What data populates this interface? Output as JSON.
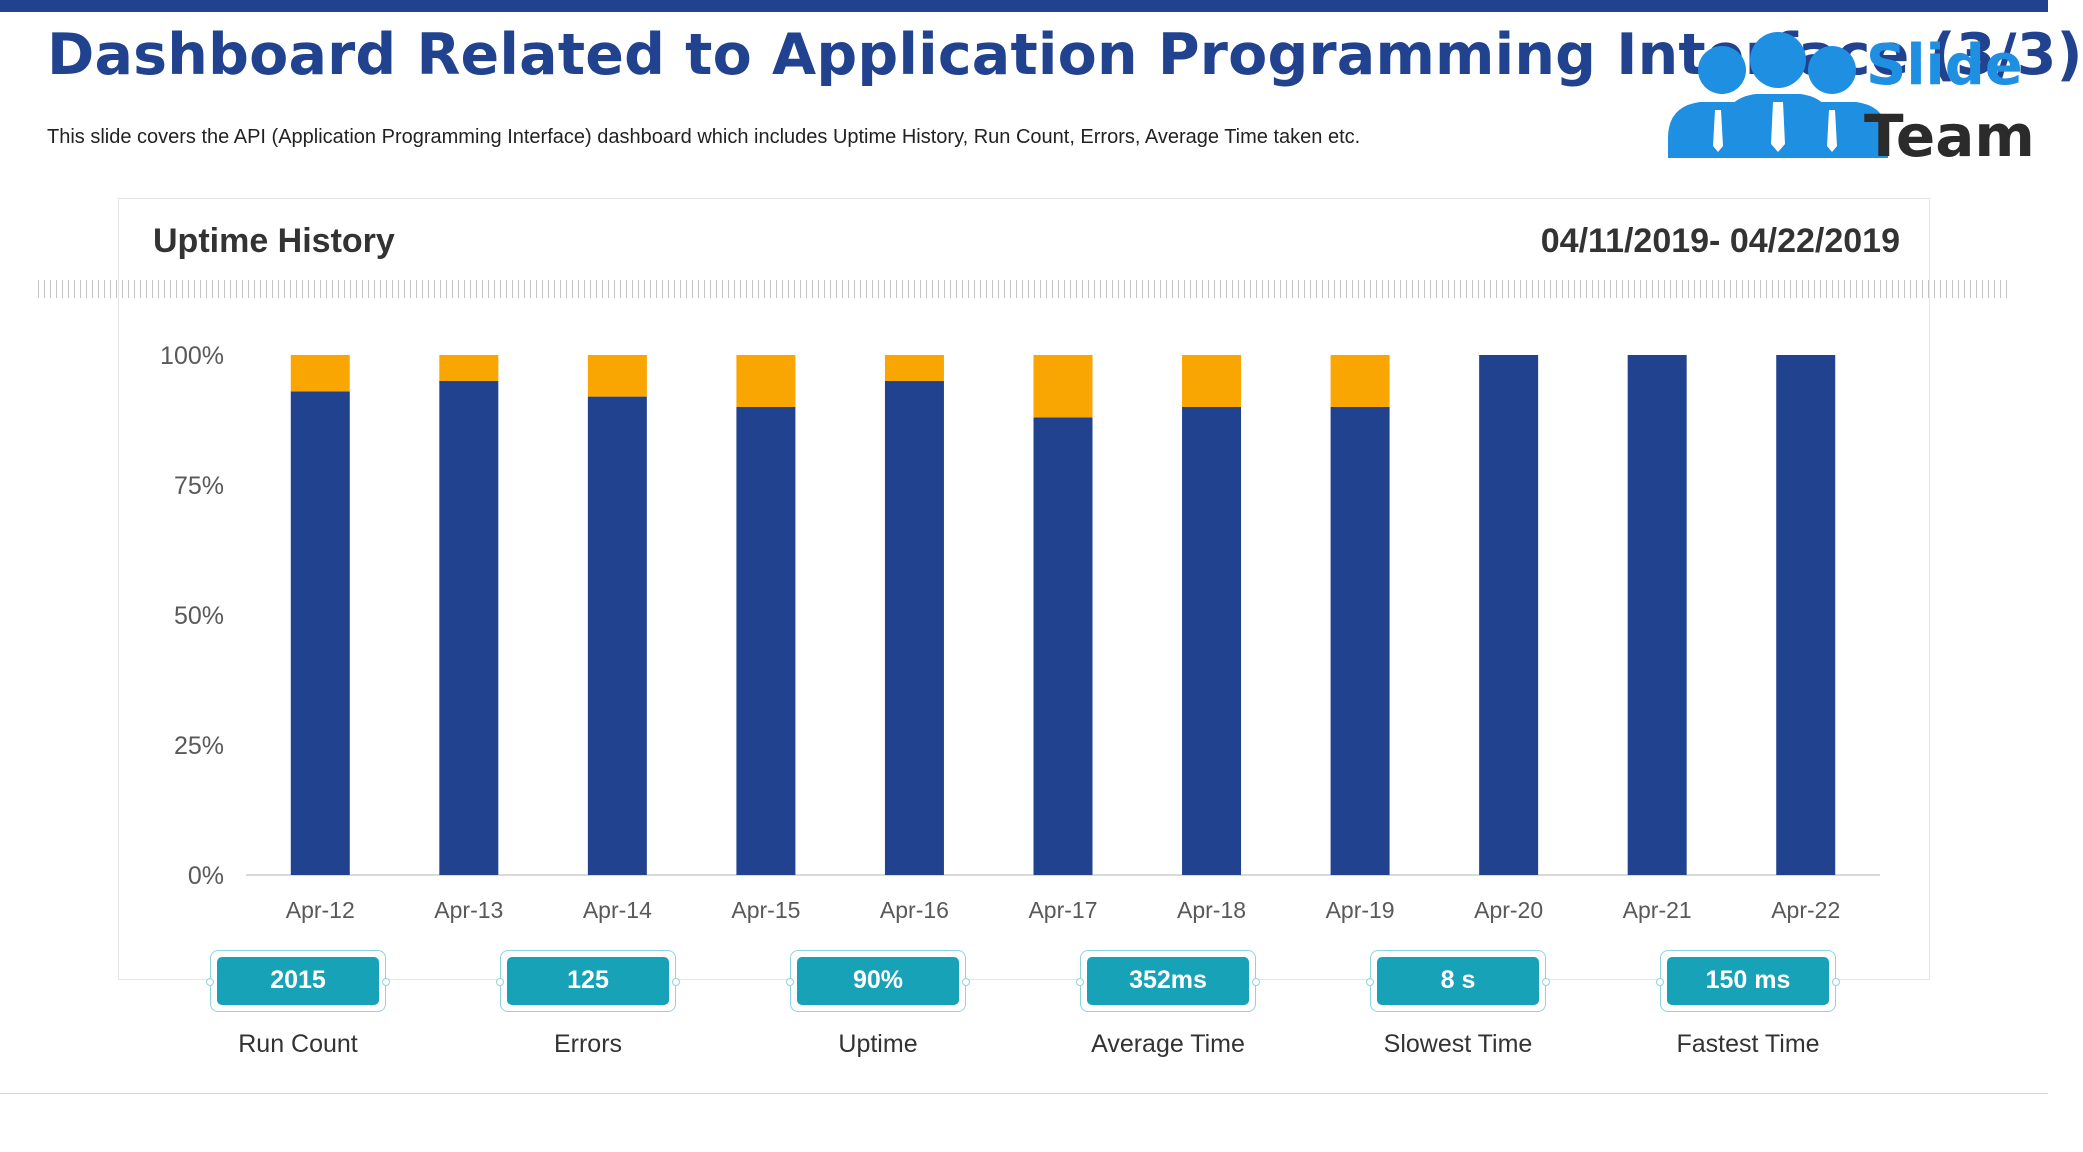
{
  "header": {
    "title": "Dashboard Related to Application Programming Interface (3/3)",
    "subtitle": "This slide covers the API (Application Programming Interface) dashboard which includes Uptime History, Run Count, Errors, Average Time taken etc."
  },
  "logo": {
    "word1": "Slide",
    "word2": "Team",
    "icon": "team-people-icon"
  },
  "colors": {
    "primary": "#21428f",
    "accent": "#f9a602",
    "teal": "#17a2b8"
  },
  "chart_data": {
    "type": "bar",
    "stacked": true,
    "title": "Uptime History",
    "date_range": "04/11/2019- 04/22/2019",
    "categories": [
      "Apr-12",
      "Apr-13",
      "Apr-14",
      "Apr-15",
      "Apr-16",
      "Apr-17",
      "Apr-18",
      "Apr-19",
      "Apr-20",
      "Apr-21",
      "Apr-22"
    ],
    "series": [
      {
        "color": "#21428f",
        "values": [
          93,
          95,
          92,
          90,
          95,
          88,
          90,
          90,
          100,
          100,
          100
        ]
      },
      {
        "color": "#f9a602",
        "values": [
          7,
          5,
          8,
          10,
          5,
          12,
          10,
          10,
          0,
          0,
          0
        ]
      }
    ],
    "ylim": [
      0,
      100
    ],
    "yticks": [
      "0%",
      "25%",
      "50%",
      "75%",
      "100%"
    ],
    "grid": false,
    "legend": "none"
  },
  "kpis": [
    {
      "value": "2015",
      "label": "Run Count"
    },
    {
      "value": "125",
      "label": "Errors"
    },
    {
      "value": "90%",
      "label": "Uptime"
    },
    {
      "value": "352ms",
      "label": "Average Time"
    },
    {
      "value": "8 s",
      "label": "Slowest Time"
    },
    {
      "value": "150 ms",
      "label": "Fastest Time"
    }
  ]
}
